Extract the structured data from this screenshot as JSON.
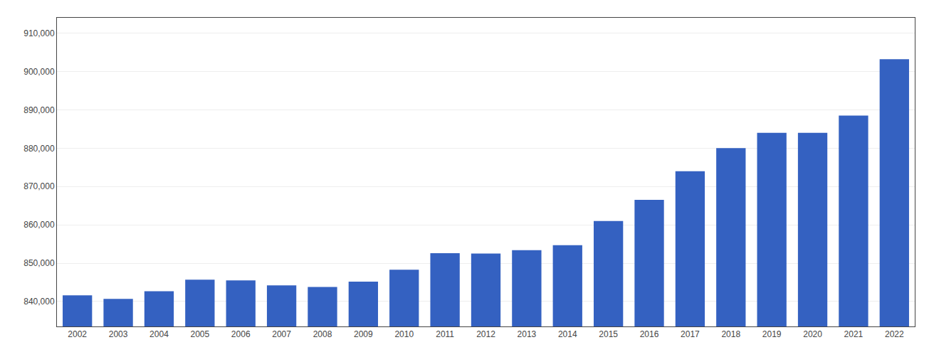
{
  "chart_data": {
    "type": "bar",
    "categories": [
      "2002",
      "2003",
      "2004",
      "2005",
      "2006",
      "2007",
      "2008",
      "2009",
      "2010",
      "2011",
      "2012",
      "2013",
      "2014",
      "2015",
      "2016",
      "2017",
      "2018",
      "2019",
      "2020",
      "2021",
      "2022"
    ],
    "values": [
      841600,
      840700,
      842700,
      845700,
      845500,
      844200,
      843800,
      845200,
      848300,
      852600,
      852500,
      853400,
      854700,
      861000,
      866500,
      874000,
      880000,
      884000,
      884000,
      888500,
      903200
    ],
    "color": "#3461C1",
    "ylim": [
      833500,
      914000
    ],
    "yticks": [
      {
        "value": 840000,
        "label": "840,000"
      },
      {
        "value": 850000,
        "label": "850,000"
      },
      {
        "value": 860000,
        "label": "860,000"
      },
      {
        "value": 870000,
        "label": "870,000"
      },
      {
        "value": 880000,
        "label": "880,000"
      },
      {
        "value": 890000,
        "label": "890,000"
      },
      {
        "value": 900000,
        "label": "900,000"
      },
      {
        "value": 910000,
        "label": "910,000"
      }
    ],
    "grid": true
  }
}
